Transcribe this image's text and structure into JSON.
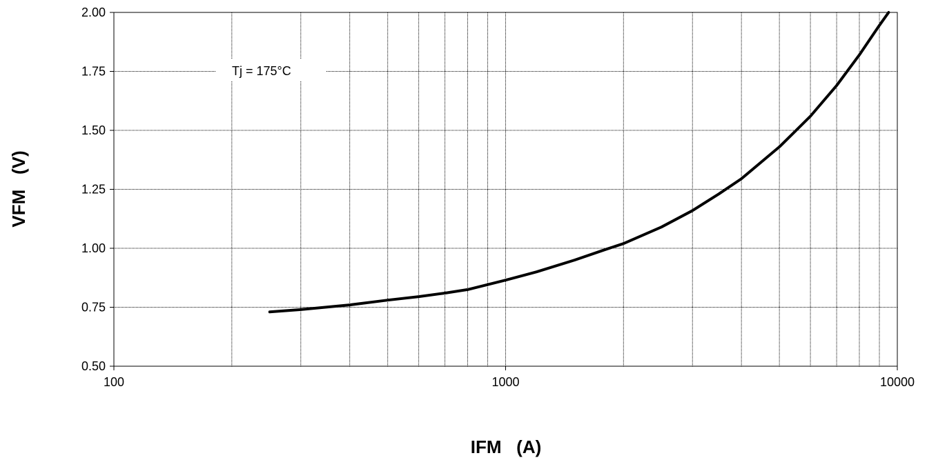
{
  "chart_data": {
    "type": "line",
    "xlabel": "IFM   (A)",
    "ylabel": "VFM   (V)",
    "x_scale": "log",
    "xlim": [
      100,
      10000
    ],
    "ylim": [
      0.5,
      2.0
    ],
    "x_ticks": [
      100,
      1000,
      10000
    ],
    "x_tick_labels": [
      "100",
      "1000",
      "10000"
    ],
    "y_ticks": [
      0.5,
      0.75,
      1.0,
      1.25,
      1.5,
      1.75,
      2.0
    ],
    "y_tick_labels": [
      "0.50",
      "0.75",
      "1.00",
      "1.25",
      "1.50",
      "1.75",
      "2.00"
    ],
    "grid": true,
    "annotation": "Tj = 175°C",
    "series": [
      {
        "x": [
          250,
          300,
          400,
          500,
          600,
          700,
          800,
          1000,
          1200,
          1500,
          1800,
          2000,
          2500,
          3000,
          3500,
          4000,
          5000,
          6000,
          7000,
          8000,
          9000,
          9500
        ],
        "y": [
          0.73,
          0.74,
          0.76,
          0.78,
          0.795,
          0.81,
          0.825,
          0.865,
          0.9,
          0.95,
          0.995,
          1.02,
          1.09,
          1.16,
          1.23,
          1.295,
          1.43,
          1.56,
          1.69,
          1.82,
          1.945,
          2.0
        ]
      }
    ]
  }
}
